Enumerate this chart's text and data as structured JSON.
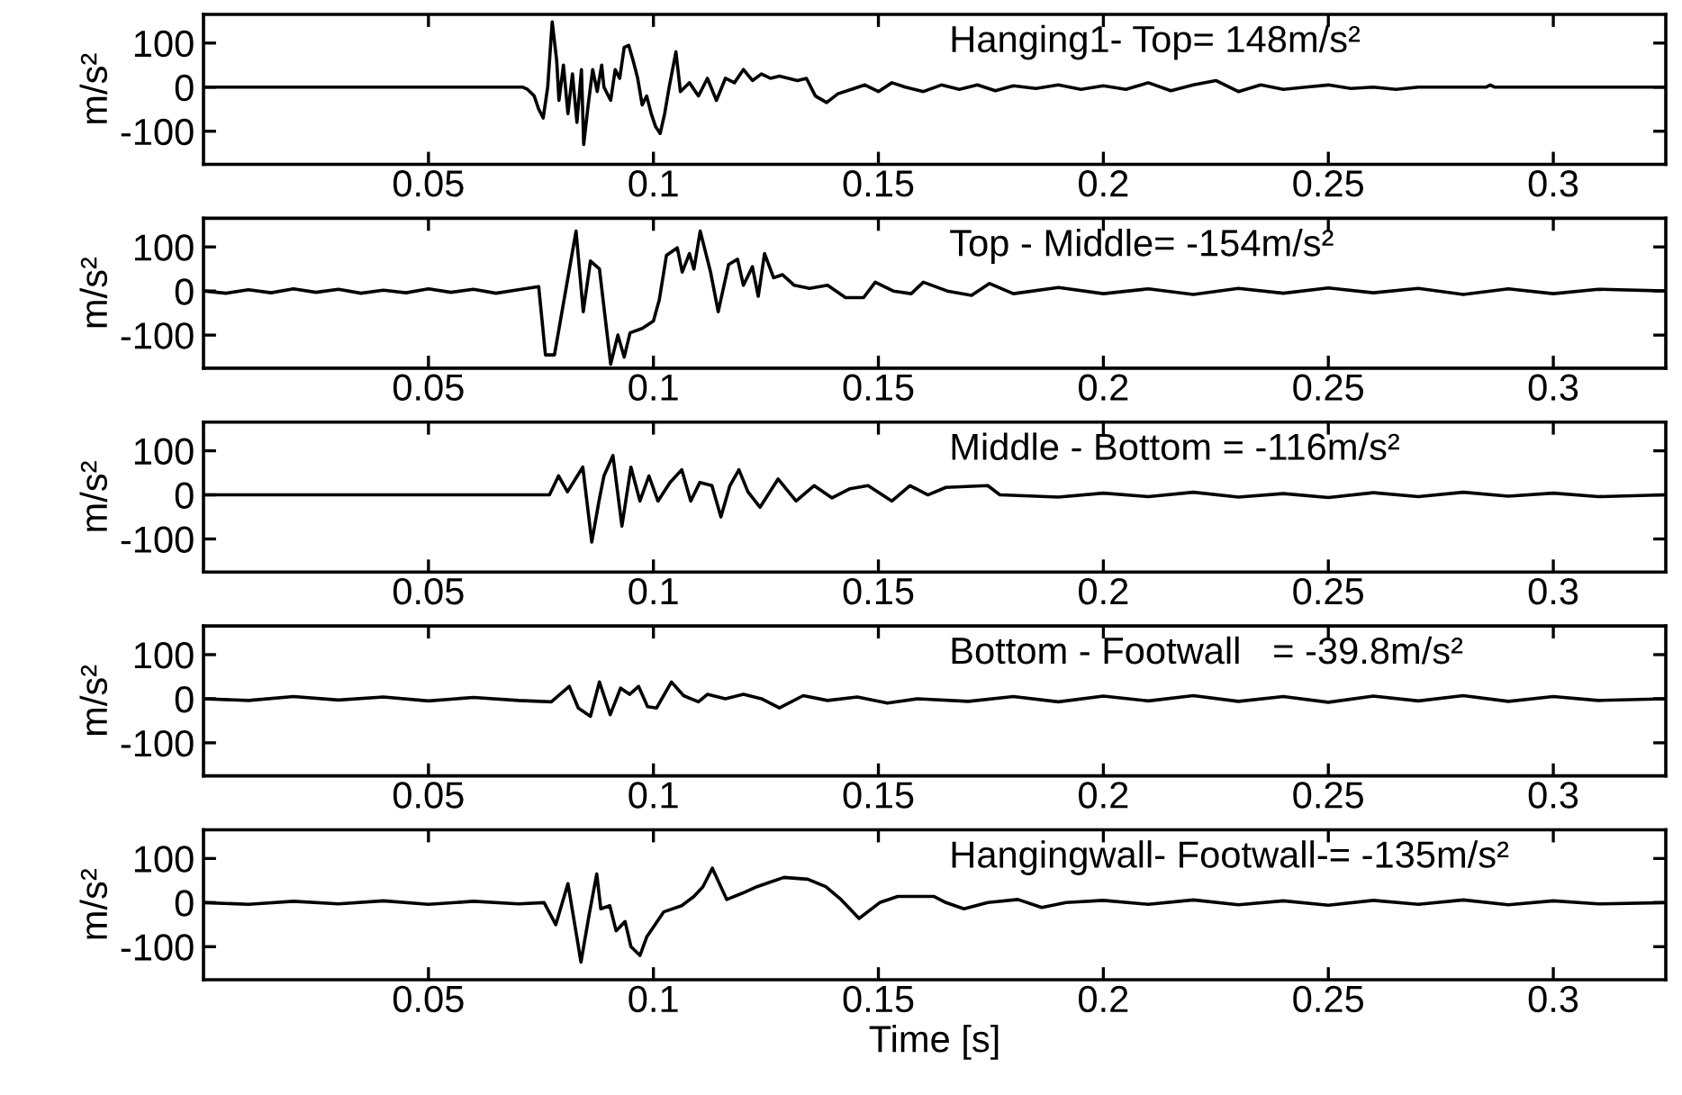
{
  "chart_data": [
    {
      "type": "line",
      "ylabel": "m/s²",
      "annotations": [
        "Hanging1- Top= 148m/s²"
      ],
      "xlim": [
        0,
        0.325
      ],
      "ylim": [
        -175,
        165
      ],
      "xticks": [
        0.05,
        0.1,
        0.15,
        0.2,
        0.25,
        0.3
      ],
      "yticks": [
        -100,
        0,
        100
      ],
      "grid": false,
      "series": [
        {
          "color": "#000000",
          "x": [
            0,
            0.071,
            0.072,
            0.0735,
            0.0745,
            0.0755,
            0.0765,
            0.0775,
            0.0785,
            0.079,
            0.08,
            0.081,
            0.082,
            0.083,
            0.084,
            0.0845,
            0.0855,
            0.0865,
            0.0875,
            0.0885,
            0.089,
            0.0905,
            0.0915,
            0.0925,
            0.0935,
            0.0945,
            0.0955,
            0.0965,
            0.0975,
            0.0985,
            0.0995,
            0.1005,
            0.1015,
            0.1025,
            0.1035,
            0.105,
            0.106,
            0.108,
            0.11,
            0.112,
            0.114,
            0.116,
            0.118,
            0.12,
            0.122,
            0.124,
            0.126,
            0.128,
            0.13,
            0.132,
            0.134,
            0.136,
            0.1385,
            0.141,
            0.144,
            0.147,
            0.15,
            0.153,
            0.156,
            0.16,
            0.164,
            0.168,
            0.172,
            0.176,
            0.18,
            0.185,
            0.19,
            0.195,
            0.2,
            0.205,
            0.21,
            0.215,
            0.22,
            0.225,
            0.23,
            0.235,
            0.24,
            0.245,
            0.25,
            0.255,
            0.26,
            0.265,
            0.27,
            0.285,
            0.286,
            0.287,
            0.325
          ],
          "values": [
            0,
            0,
            -5,
            -20,
            -50,
            -70,
            0,
            148,
            60,
            -30,
            50,
            -60,
            30,
            -80,
            40,
            -130,
            -40,
            40,
            -10,
            50,
            0,
            -30,
            40,
            20,
            90,
            95,
            60,
            20,
            -40,
            -20,
            -60,
            -90,
            -105,
            -60,
            0,
            80,
            -10,
            10,
            -20,
            20,
            -30,
            20,
            10,
            40,
            15,
            30,
            20,
            25,
            20,
            15,
            20,
            -20,
            -35,
            -15,
            -5,
            5,
            -10,
            10,
            0,
            -10,
            5,
            -5,
            5,
            -8,
            3,
            -3,
            5,
            -5,
            3,
            -5,
            10,
            -8,
            5,
            15,
            -10,
            5,
            -5,
            0,
            5,
            -3,
            0,
            -5,
            0,
            0,
            5,
            0,
            0
          ]
        }
      ]
    },
    {
      "type": "line",
      "ylabel": "m/s²",
      "annotations": [
        "Top - Middle= -154m/s²"
      ],
      "xlim": [
        0,
        0.325
      ],
      "ylim": [
        -175,
        165
      ],
      "xticks": [
        0.05,
        0.1,
        0.15,
        0.2,
        0.25,
        0.3
      ],
      "yticks": [
        -100,
        0,
        100
      ],
      "grid": false,
      "series": [
        {
          "color": "#000000",
          "x": [
            0,
            0.005,
            0.01,
            0.015,
            0.02,
            0.025,
            0.03,
            0.035,
            0.04,
            0.045,
            0.05,
            0.055,
            0.06,
            0.065,
            0.07,
            0.0745,
            0.076,
            0.078,
            0.0828,
            0.0844,
            0.086,
            0.088,
            0.0905,
            0.0921,
            0.0935,
            0.0948,
            0.0975,
            0.1,
            0.1013,
            0.1029,
            0.1053,
            0.1064,
            0.108,
            0.109,
            0.1104,
            0.1127,
            0.1144,
            0.1167,
            0.1187,
            0.12,
            0.122,
            0.1233,
            0.1247,
            0.1267,
            0.1287,
            0.1313,
            0.1347,
            0.1387,
            0.1427,
            0.1467,
            0.1493,
            0.1533,
            0.1573,
            0.16,
            0.1653,
            0.1707,
            0.1747,
            0.18,
            0.19,
            0.2,
            0.21,
            0.22,
            0.23,
            0.24,
            0.25,
            0.26,
            0.27,
            0.28,
            0.29,
            0.3,
            0.31,
            0.325
          ],
          "values": [
            0,
            -5,
            3,
            -4,
            5,
            -3,
            4,
            -5,
            2,
            -4,
            5,
            -3,
            4,
            -5,
            3,
            10,
            -145,
            -145,
            136,
            -47,
            68,
            50,
            -166,
            -100,
            -150,
            -95,
            -85,
            -68,
            -20,
            81,
            98,
            43,
            85,
            50,
            136,
            43,
            -47,
            60,
            72,
            13,
            55,
            -12,
            85,
            30,
            37,
            13,
            6,
            13,
            -15,
            -15,
            20,
            0,
            -6,
            20,
            0,
            -10,
            17,
            -6,
            8,
            -6,
            5,
            -8,
            6,
            -5,
            7,
            -4,
            6,
            -8,
            5,
            -6,
            4,
            0
          ]
        }
      ]
    },
    {
      "type": "line",
      "ylabel": "m/s²",
      "annotations": [
        "Middle - Bottom = -116m/s²"
      ],
      "xlim": [
        0,
        0.325
      ],
      "ylim": [
        -175,
        165
      ],
      "xticks": [
        0.05,
        0.1,
        0.15,
        0.2,
        0.25,
        0.3
      ],
      "yticks": [
        -100,
        0,
        100
      ],
      "grid": false,
      "series": [
        {
          "color": "#000000",
          "x": [
            0,
            0.0755,
            0.0769,
            0.0789,
            0.0809,
            0.0843,
            0.0863,
            0.0879,
            0.089,
            0.091,
            0.093,
            0.095,
            0.097,
            0.099,
            0.101,
            0.1037,
            0.1063,
            0.1083,
            0.1103,
            0.113,
            0.115,
            0.117,
            0.119,
            0.121,
            0.1237,
            0.1277,
            0.1317,
            0.1357,
            0.1397,
            0.1437,
            0.1477,
            0.153,
            0.157,
            0.161,
            0.165,
            0.1743,
            0.177,
            0.19,
            0.2,
            0.21,
            0.22,
            0.23,
            0.24,
            0.25,
            0.26,
            0.27,
            0.28,
            0.29,
            0.3,
            0.31,
            0.325
          ],
          "values": [
            0,
            0,
            0,
            43,
            7,
            63,
            -107,
            -14,
            43,
            89,
            -71,
            63,
            -14,
            43,
            -14,
            28,
            57,
            -14,
            28,
            21,
            -50,
            21,
            57,
            7,
            -28,
            36,
            -14,
            21,
            -7,
            14,
            21,
            -14,
            21,
            0,
            17,
            21,
            0,
            -5,
            4,
            -4,
            6,
            -5,
            3,
            -6,
            5,
            -4,
            6,
            -3,
            4,
            -4,
            0
          ]
        }
      ]
    },
    {
      "type": "line",
      "ylabel": "m/s²",
      "annotations": [
        "Bottom - Footwall   = -39.8m/s²"
      ],
      "xlim": [
        0,
        0.325
      ],
      "ylim": [
        -175,
        165
      ],
      "xticks": [
        0.05,
        0.1,
        0.15,
        0.2,
        0.25,
        0.3
      ],
      "yticks": [
        -100,
        0,
        100
      ],
      "grid": false,
      "series": [
        {
          "color": "#000000",
          "x": [
            0,
            0.01,
            0.02,
            0.03,
            0.04,
            0.05,
            0.06,
            0.07,
            0.0773,
            0.0813,
            0.0833,
            0.086,
            0.088,
            0.0904,
            0.0927,
            0.0947,
            0.0967,
            0.0987,
            0.1007,
            0.104,
            0.1067,
            0.11,
            0.112,
            0.116,
            0.12,
            0.124,
            0.128,
            0.1333,
            0.1387,
            0.1453,
            0.152,
            0.1587,
            0.17,
            0.18,
            0.19,
            0.2,
            0.21,
            0.22,
            0.23,
            0.24,
            0.25,
            0.26,
            0.27,
            0.28,
            0.29,
            0.3,
            0.31,
            0.325
          ],
          "values": [
            0,
            -4,
            5,
            -3,
            4,
            -5,
            3,
            -4,
            -7,
            28,
            -21,
            -39.8,
            38,
            -36,
            24,
            10,
            28,
            -18,
            -21,
            38,
            7,
            -7,
            10,
            0,
            10,
            0,
            -21,
            7,
            -4,
            4,
            -10,
            0,
            -6,
            5,
            -7,
            6,
            -5,
            7,
            -6,
            5,
            -8,
            6,
            -5,
            7,
            -6,
            5,
            -4,
            0
          ]
        }
      ]
    },
    {
      "type": "line",
      "ylabel": "m/s²",
      "xlabel": "Time [s]",
      "annotations": [
        "Hangingwall- Footwall-= -135m/s²"
      ],
      "xlim": [
        0,
        0.325
      ],
      "ylim": [
        -175,
        165
      ],
      "xticks": [
        0.05,
        0.1,
        0.15,
        0.2,
        0.25,
        0.3
      ],
      "yticks": [
        -100,
        0,
        100
      ],
      "grid": false,
      "series": [
        {
          "color": "#000000",
          "x": [
            0,
            0.01,
            0.02,
            0.03,
            0.04,
            0.05,
            0.06,
            0.07,
            0.0757,
            0.0783,
            0.081,
            0.0839,
            0.0857,
            0.0874,
            0.0883,
            0.0903,
            0.0917,
            0.0937,
            0.095,
            0.097,
            0.0985,
            0.1023,
            0.1063,
            0.109,
            0.111,
            0.1131,
            0.1163,
            0.1197,
            0.123,
            0.125,
            0.129,
            0.1343,
            0.1383,
            0.1417,
            0.1457,
            0.1503,
            0.1543,
            0.1623,
            0.165,
            0.169,
            0.1743,
            0.181,
            0.1863,
            0.1917,
            0.2,
            0.21,
            0.22,
            0.23,
            0.24,
            0.25,
            0.26,
            0.27,
            0.28,
            0.29,
            0.3,
            0.31,
            0.325
          ],
          "values": [
            0,
            -4,
            3,
            -3,
            4,
            -4,
            3,
            -3,
            0,
            -50,
            43,
            -135,
            -28,
            65,
            -14,
            -7,
            -64,
            -43,
            -100,
            -120,
            -78,
            -21,
            -7,
            14,
            36,
            78,
            7,
            21,
            36,
            43,
            57,
            53,
            36,
            7,
            -36,
            0,
            14,
            14,
            0,
            -14,
            0,
            7,
            -11,
            0,
            5,
            -4,
            6,
            -5,
            4,
            -6,
            5,
            -4,
            6,
            -5,
            4,
            -3,
            0
          ]
        }
      ]
    }
  ]
}
